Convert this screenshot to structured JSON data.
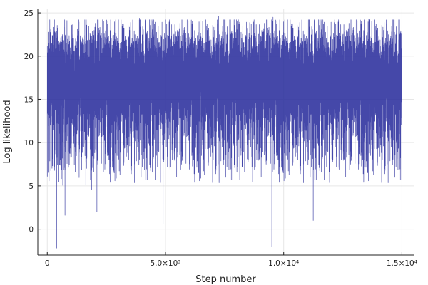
{
  "chart_data": {
    "type": "line",
    "xlabel": "Step number",
    "ylabel": "Log likelihood",
    "xlim": [
      -400,
      15500
    ],
    "ylim": [
      -3,
      25.5
    ],
    "grid": true,
    "legend": "none",
    "series_color": "#24289a",
    "x_ticks": [
      {
        "value": 0,
        "label": "0"
      },
      {
        "value": 5000,
        "label": "5.0×10³"
      },
      {
        "value": 10000,
        "label": "1.0×10⁴"
      },
      {
        "value": 15000,
        "label": "1.5×10⁴"
      }
    ],
    "y_ticks": [
      {
        "value": 0,
        "label": "0"
      },
      {
        "value": 5,
        "label": "5"
      },
      {
        "value": 10,
        "label": "10"
      },
      {
        "value": 15,
        "label": "15"
      },
      {
        "value": 20,
        "label": "20"
      },
      {
        "value": 25,
        "label": "25"
      }
    ],
    "series": [
      {
        "n_points": 15000,
        "x_start": 0,
        "x_end": 15000,
        "typical_min": 10,
        "typical_max": 23,
        "center": 17.5,
        "notable_points": [
          {
            "x": 400,
            "y": -2.2
          },
          {
            "x": 9500,
            "y": -2.0
          },
          {
            "x": 7250,
            "y": 24.6
          },
          {
            "x": 9550,
            "y": 24.5
          },
          {
            "x": 3900,
            "y": 24.4
          },
          {
            "x": 13600,
            "y": 24.3
          },
          {
            "x": 4900,
            "y": 0.6
          },
          {
            "x": 11250,
            "y": 1.0
          },
          {
            "x": 750,
            "y": 1.6
          },
          {
            "x": 2100,
            "y": 2.0
          }
        ]
      }
    ]
  }
}
